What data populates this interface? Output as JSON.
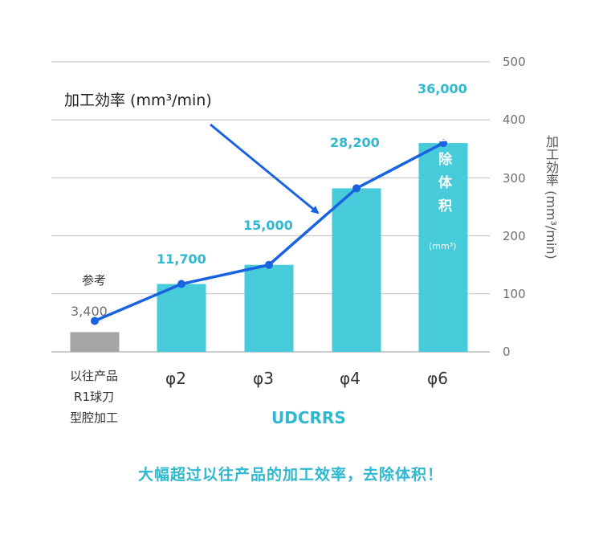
{
  "chart_data": {
    "type": "bar",
    "categories": [
      "以往产品\nR1球刀\n型腔加工",
      "φ2",
      "φ3",
      "φ4",
      "φ6"
    ],
    "values": [
      3400,
      11700,
      15000,
      28200,
      36000
    ],
    "line_values": [
      3400,
      11700,
      15000,
      28200,
      36000
    ],
    "data_labels": [
      "3,400",
      "11,700",
      "15,000",
      "28,200",
      "36,000"
    ],
    "reference_tag": "参考",
    "group_label": "UDCRRS",
    "legend_line": "加工効率 (mm³/min)",
    "ylabel": "加工効率 (mm³/min)",
    "yticks": [
      "0",
      "100",
      "200",
      "300",
      "400",
      "500"
    ],
    "ylim": [
      0,
      500
    ],
    "bar_annotation": "去除体积",
    "bar_annotation_unit": "(mm³)",
    "grid": true,
    "colors": {
      "reference_bar": "#a6a4a4",
      "bar": "#47cad9",
      "line": "#1a63e0",
      "label": "#2fb8cf"
    }
  },
  "footer": "大幅超过以往产品的加工效率，去除体积！"
}
